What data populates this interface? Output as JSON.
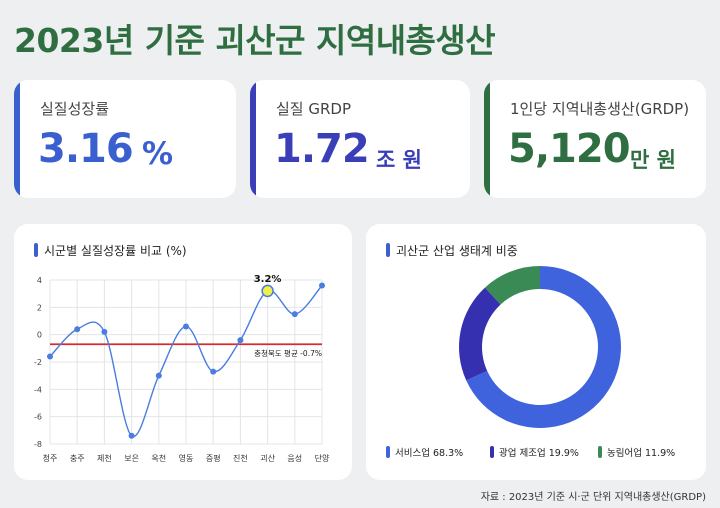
{
  "title": "2023년 기준 괴산군 지역내총생산",
  "stats": [
    {
      "label": "실질성장률",
      "value": "3.16",
      "unit": "%",
      "color": "#3a5fcf"
    },
    {
      "label": "실질 GRDP",
      "value": "1.72",
      "unit": "조 원",
      "color": "#3a3fb8"
    },
    {
      "label": "1인당 지역내총생산(GRDP)",
      "value": "5,120",
      "unit": "만 원",
      "color": "#2f6e40"
    }
  ],
  "line_section": {
    "title": "시군별 실질성장률 비교 (%)"
  },
  "donut_section": {
    "title": "괴산군 산업 생태계 비중"
  },
  "source": "자료 : 2023년 기준 시·군 단위 지역내총생산(GRDP)",
  "chart_data": [
    {
      "type": "line",
      "categories": [
        "청주",
        "충주",
        "제천",
        "보은",
        "옥천",
        "영동",
        "증평",
        "진천",
        "괴산",
        "음성",
        "단양"
      ],
      "values": [
        -1.6,
        0.4,
        0.2,
        -7.4,
        -3.0,
        0.6,
        -2.7,
        -0.4,
        3.2,
        1.5,
        3.6
      ],
      "ylim": [
        -8,
        4
      ],
      "yticks": [
        4,
        2,
        0,
        -2,
        -4,
        -6,
        -8
      ],
      "highlight": {
        "category": "괴산",
        "label": "3.2%"
      },
      "reference_line": {
        "value": -0.7,
        "label": "충청북도 평균 -0.7%",
        "color": "#d62c2c"
      },
      "series_color": "#4a7de0",
      "grid": true
    },
    {
      "type": "pie",
      "labels": [
        "서비스업",
        "광업 제조업",
        "농림어업"
      ],
      "values": [
        68.3,
        19.9,
        11.9
      ],
      "legend_labels": [
        "서비스업 68.3%",
        "광업 제조업 19.9%",
        "농림어업 11.9%"
      ],
      "colors": [
        "#3f63dc",
        "#3530b0",
        "#3a8a55"
      ],
      "legend": "bottom"
    }
  ]
}
